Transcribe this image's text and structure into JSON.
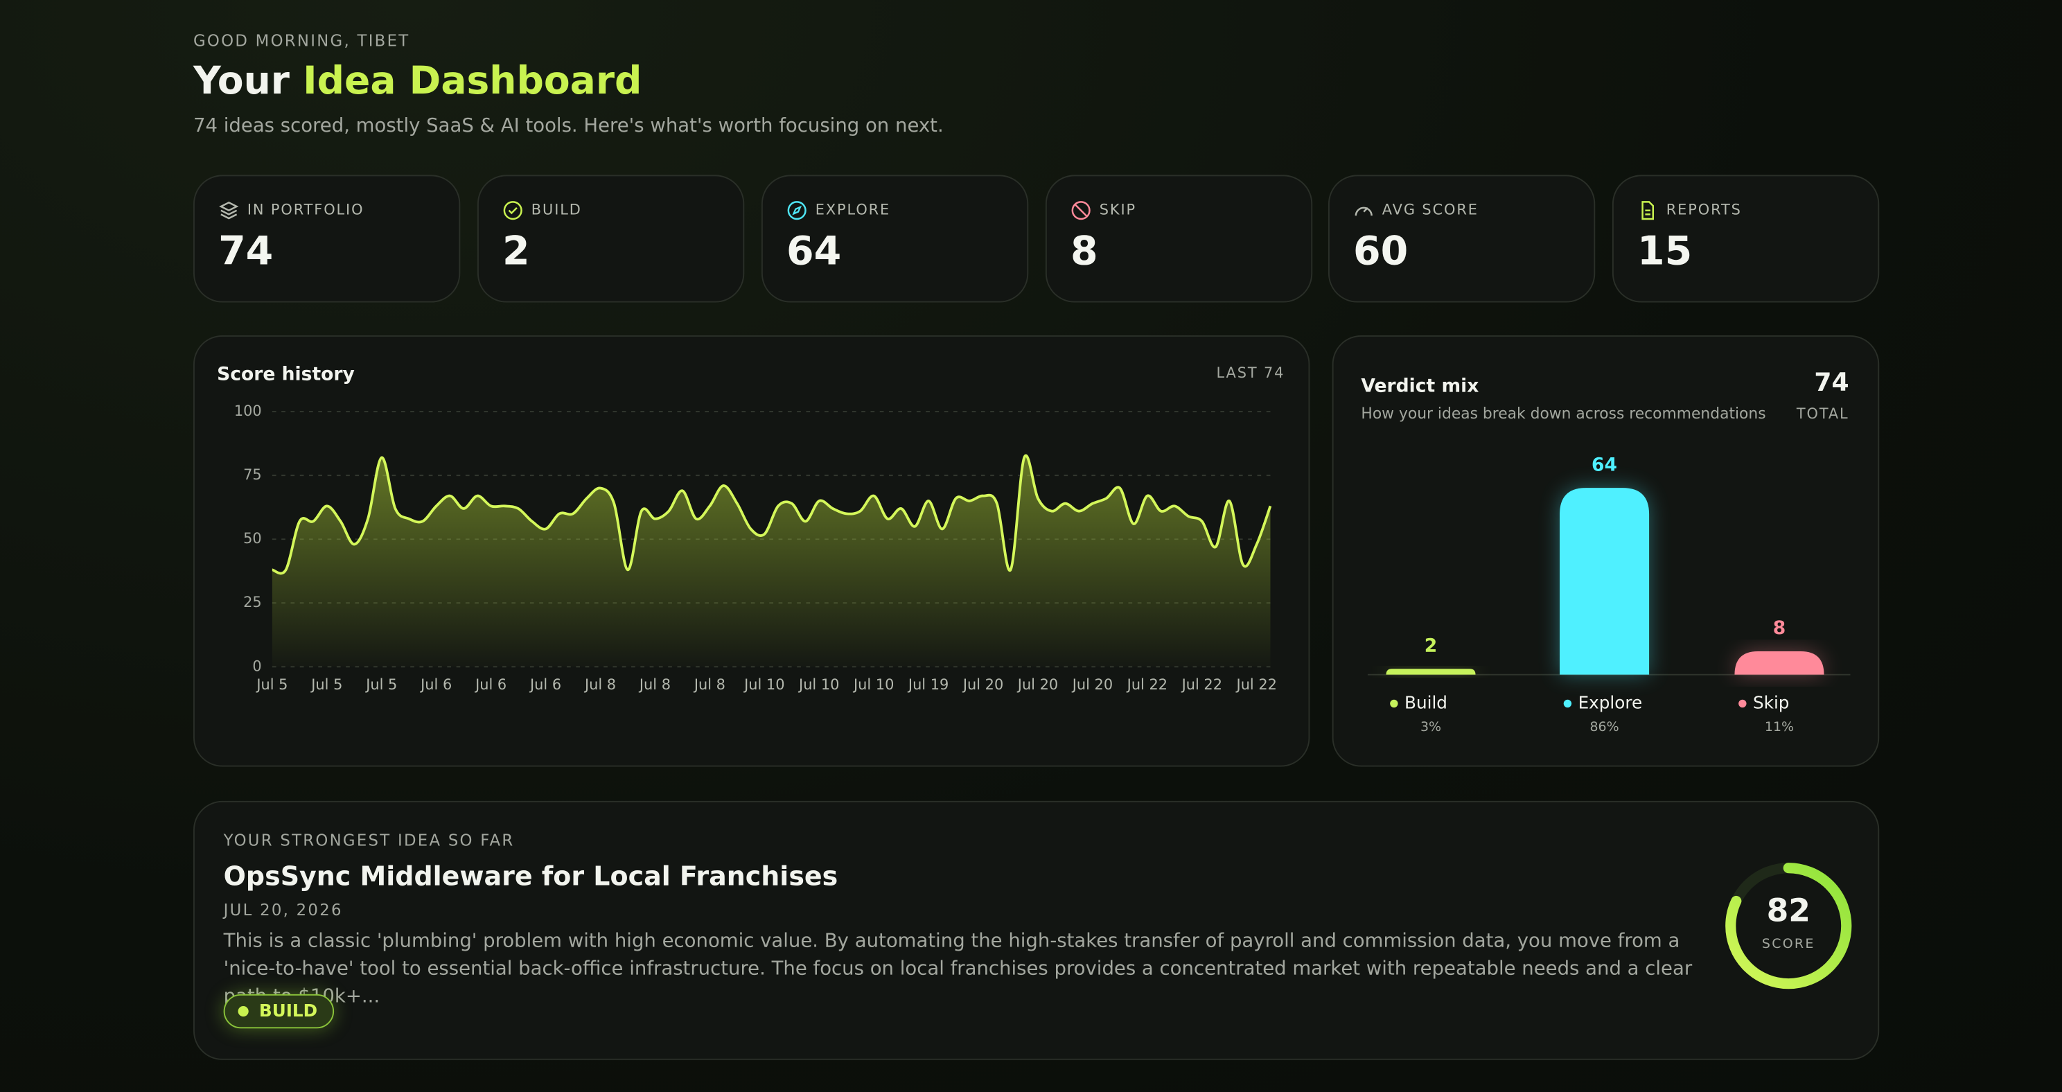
{
  "header": {
    "greeting": "GOOD MORNING, TIBET",
    "title_lead": "Your",
    "title_accent": "Idea Dashboard",
    "subtitle": "74 ideas scored, mostly SaaS & AI tools. Here's what's worth focusing on next."
  },
  "stats": [
    {
      "label": "IN PORTFOLIO",
      "value": 74
    },
    {
      "label": "BUILD",
      "value": 2
    },
    {
      "label": "EXPLORE",
      "value": 64
    },
    {
      "label": "SKIP",
      "value": 8
    },
    {
      "label": "AVG SCORE",
      "value": 60
    },
    {
      "label": "REPORTS",
      "value": 15
    }
  ],
  "chart_data": [
    {
      "type": "line",
      "title": "Score history",
      "badge": "LAST 74",
      "color": "#d4f75a",
      "categories": [
        "Jul 5",
        null,
        null,
        null,
        "Jul 5",
        null,
        null,
        null,
        "Jul 5",
        null,
        null,
        null,
        "Jul 6",
        null,
        null,
        null,
        "Jul 6",
        null,
        null,
        null,
        "Jul 6",
        null,
        null,
        null,
        "Jul 8",
        null,
        null,
        null,
        "Jul 8",
        null,
        null,
        null,
        "Jul 8",
        null,
        null,
        null,
        "Jul 10",
        null,
        null,
        null,
        "Jul 10",
        null,
        null,
        null,
        "Jul 10",
        null,
        null,
        null,
        "Jul 19",
        null,
        null,
        null,
        "Jul 20",
        null,
        null,
        null,
        "Jul 20",
        null,
        null,
        null,
        "Jul 20",
        null,
        null,
        null,
        "Jul 22",
        null,
        null,
        null,
        "Jul 22",
        null,
        null,
        null,
        "Jul 22",
        null
      ],
      "values": [
        38,
        38,
        57,
        57,
        63,
        57,
        48,
        58,
        82,
        62,
        58,
        57,
        63,
        67,
        62,
        67,
        63,
        63,
        62,
        57,
        54,
        60,
        60,
        66,
        70,
        64,
        38,
        61,
        58,
        61,
        69,
        58,
        63,
        71,
        64,
        54,
        52,
        63,
        64,
        57,
        65,
        62,
        60,
        61,
        67,
        58,
        62,
        55,
        65,
        54,
        66,
        65,
        67,
        64,
        38,
        82,
        66,
        61,
        64,
        61,
        64,
        66,
        70,
        56,
        67,
        61,
        63,
        59,
        57,
        47,
        65,
        40,
        48,
        63
      ],
      "ylim": [
        0,
        100
      ],
      "yticks": [
        0,
        25,
        50,
        75,
        100
      ],
      "grid": true
    },
    {
      "type": "bar",
      "title": "Verdict mix",
      "subtitle": "How your ideas break down across recommendations",
      "total": 74,
      "total_label": "TOTAL",
      "categories": [
        "Build",
        "Explore",
        "Skip"
      ],
      "values": [
        2,
        64,
        8
      ],
      "colors": [
        "#c6f25c",
        "#4ff0ff",
        "#ff8a9a"
      ],
      "share_labels": [
        "3%",
        "86%",
        "11%"
      ]
    }
  ],
  "top_idea": {
    "eyebrow": "YOUR STRONGEST IDEA SO FAR",
    "title": "OpsSync Middleware for Local Franchises",
    "date": "JUL 20, 2026",
    "description": "This is a classic 'plumbing' problem with high economic value. By automating the high-stakes transfer of payroll and commission data, you move from a 'nice-to-have' tool to essential back-office infrastructure. The focus on local franchises provides a concentrated market with repeatable needs and a clear path to $10k+...",
    "verdict": "BUILD",
    "score": 82,
    "score_label": "SCORE"
  }
}
